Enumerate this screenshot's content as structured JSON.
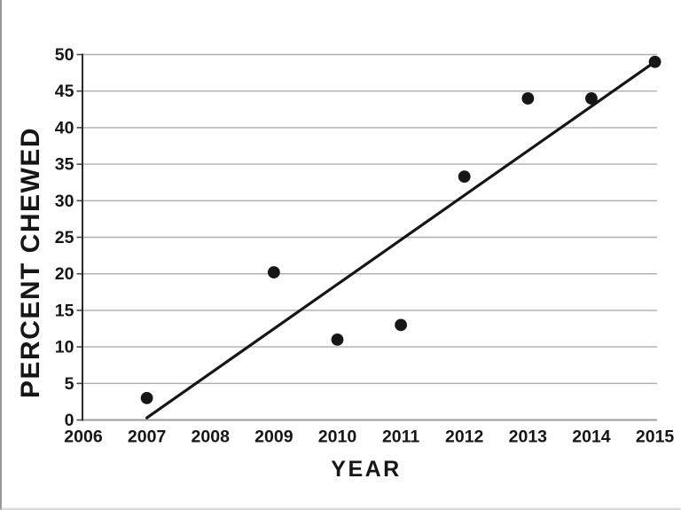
{
  "figure": {
    "background": "#ffffff",
    "ink_color": "#161616",
    "gridline_color": "#aeaeae",
    "bottom_axis_color": "#9b9b9b",
    "left_axis_color": "#2a2a2a",
    "tick_color": "#4a4a4a"
  },
  "chart_data": {
    "type": "scatter",
    "title": "",
    "xlabel": "YEAR",
    "ylabel": "PERCENT CHEWED",
    "xlim": [
      2006,
      2015.05
    ],
    "ylim": [
      0,
      50
    ],
    "grid": "horizontal-only",
    "legend": "none",
    "x_ticks": [
      "2006",
      "2007",
      "2008",
      "2009",
      "2010",
      "2011",
      "2012",
      "2013",
      "2014",
      "2015"
    ],
    "y_ticks": [
      "0",
      "5",
      "10",
      "15",
      "20",
      "25",
      "30",
      "35",
      "40",
      "45",
      "50"
    ],
    "points": [
      {
        "x": 2007,
        "y": 3
      },
      {
        "x": 2009,
        "y": 20.2
      },
      {
        "x": 2010,
        "y": 11
      },
      {
        "x": 2011,
        "y": 13
      },
      {
        "x": 2012,
        "y": 33.3
      },
      {
        "x": 2013,
        "y": 44
      },
      {
        "x": 2014,
        "y": 44
      },
      {
        "x": 2015,
        "y": 49
      }
    ],
    "trend_line": {
      "x1": 2007,
      "y1": 0.3,
      "x2": 2015,
      "y2": 49
    }
  }
}
